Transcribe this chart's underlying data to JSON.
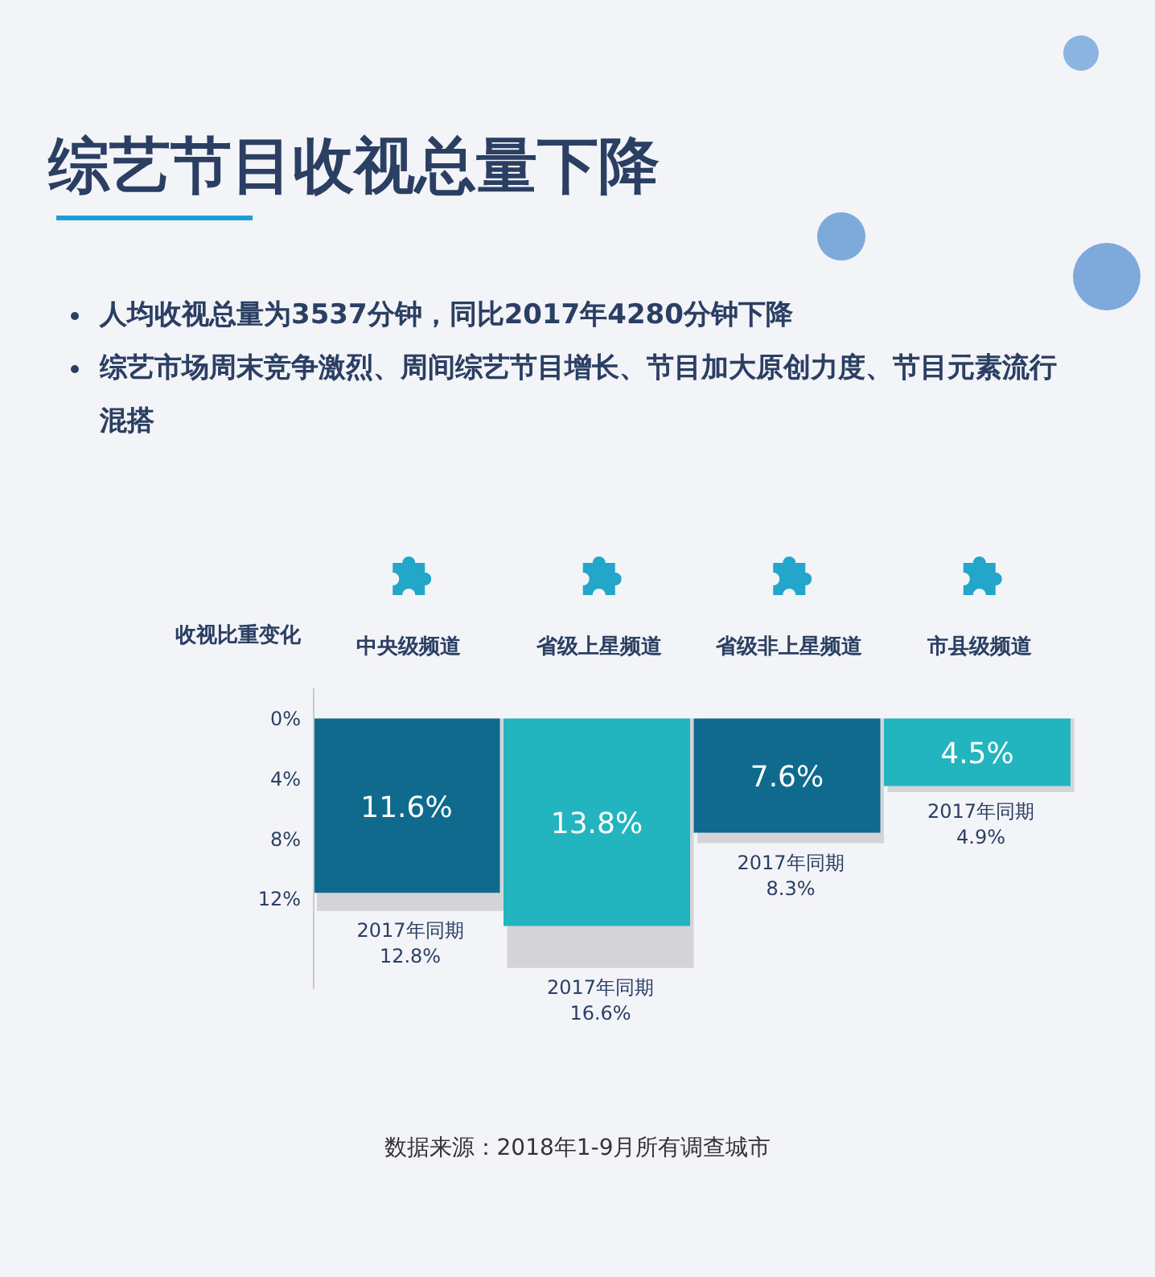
{
  "chart_data": {
    "type": "bar",
    "title": "综艺节目收视总量下降",
    "annotations": [
      "人均收视总量为3537分钟，同比2017年4280分钟下降",
      "综艺市场周末竞争激烈、周间综艺节目增长、节目加大原创力度、节目元素流行混搭",
      "数据来源：2018年1-9月所有调查城市"
    ],
    "ylabel": "收视比重变化",
    "categories": [
      "中央级频道",
      "省级上星频道",
      "省级非上星频道",
      "市县级频道"
    ],
    "series": [
      {
        "colors": [
          "#0f6a8e",
          "#22b5c0",
          "#0f6a8e",
          "#22b5c0"
        ],
        "values": [
          11.6,
          13.8,
          7.6,
          4.5
        ],
        "value_labels": [
          "11.6%",
          "13.8%",
          "7.6%",
          "4.5%"
        ]
      },
      {
        "name": "2017年同期",
        "color": "#d4d4d8",
        "values": [
          12.8,
          16.6,
          8.3,
          4.9
        ],
        "value_labels": [
          "12.8%",
          "16.6%",
          "8.3%",
          "4.9%"
        ]
      }
    ],
    "ylim": [
      18,
      -2
    ],
    "yticks": [
      {
        "value": 0,
        "label": "0%"
      },
      {
        "value": 4,
        "label": "4%"
      },
      {
        "value": 8,
        "label": "8%"
      },
      {
        "value": 12,
        "label": "12%"
      }
    ]
  }
}
